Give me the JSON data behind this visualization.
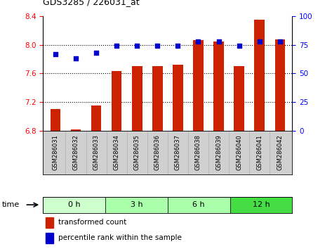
{
  "title": "GDS3285 / 226031_at",
  "samples": [
    "GSM286031",
    "GSM286032",
    "GSM286033",
    "GSM286034",
    "GSM286035",
    "GSM286036",
    "GSM286037",
    "GSM286038",
    "GSM286039",
    "GSM286040",
    "GSM286041",
    "GSM286042"
  ],
  "bar_values": [
    7.1,
    6.82,
    7.15,
    7.63,
    7.7,
    7.7,
    7.72,
    8.07,
    8.05,
    7.7,
    8.35,
    8.08
  ],
  "scatter_values": [
    67,
    63,
    68,
    74,
    74,
    74,
    74,
    78,
    78,
    74,
    78,
    78
  ],
  "group_boundaries": [
    {
      "label": "0 h",
      "start": 0,
      "end": 3,
      "color": "#ccffcc"
    },
    {
      "label": "3 h",
      "start": 3,
      "end": 6,
      "color": "#aaffaa"
    },
    {
      "label": "6 h",
      "start": 6,
      "end": 9,
      "color": "#aaffaa"
    },
    {
      "label": "12 h",
      "start": 9,
      "end": 12,
      "color": "#44dd44"
    }
  ],
  "ylim_left": [
    6.8,
    8.4
  ],
  "ylim_right": [
    0,
    100
  ],
  "yticks_left": [
    6.8,
    7.2,
    7.6,
    8.0,
    8.4
  ],
  "yticks_right": [
    0,
    25,
    50,
    75,
    100
  ],
  "bar_color": "#cc2200",
  "scatter_color": "#0000cc",
  "bar_width": 0.5,
  "xtick_bg": "#d0d0d0",
  "fig_width": 4.73,
  "fig_height": 3.54,
  "dpi": 100
}
